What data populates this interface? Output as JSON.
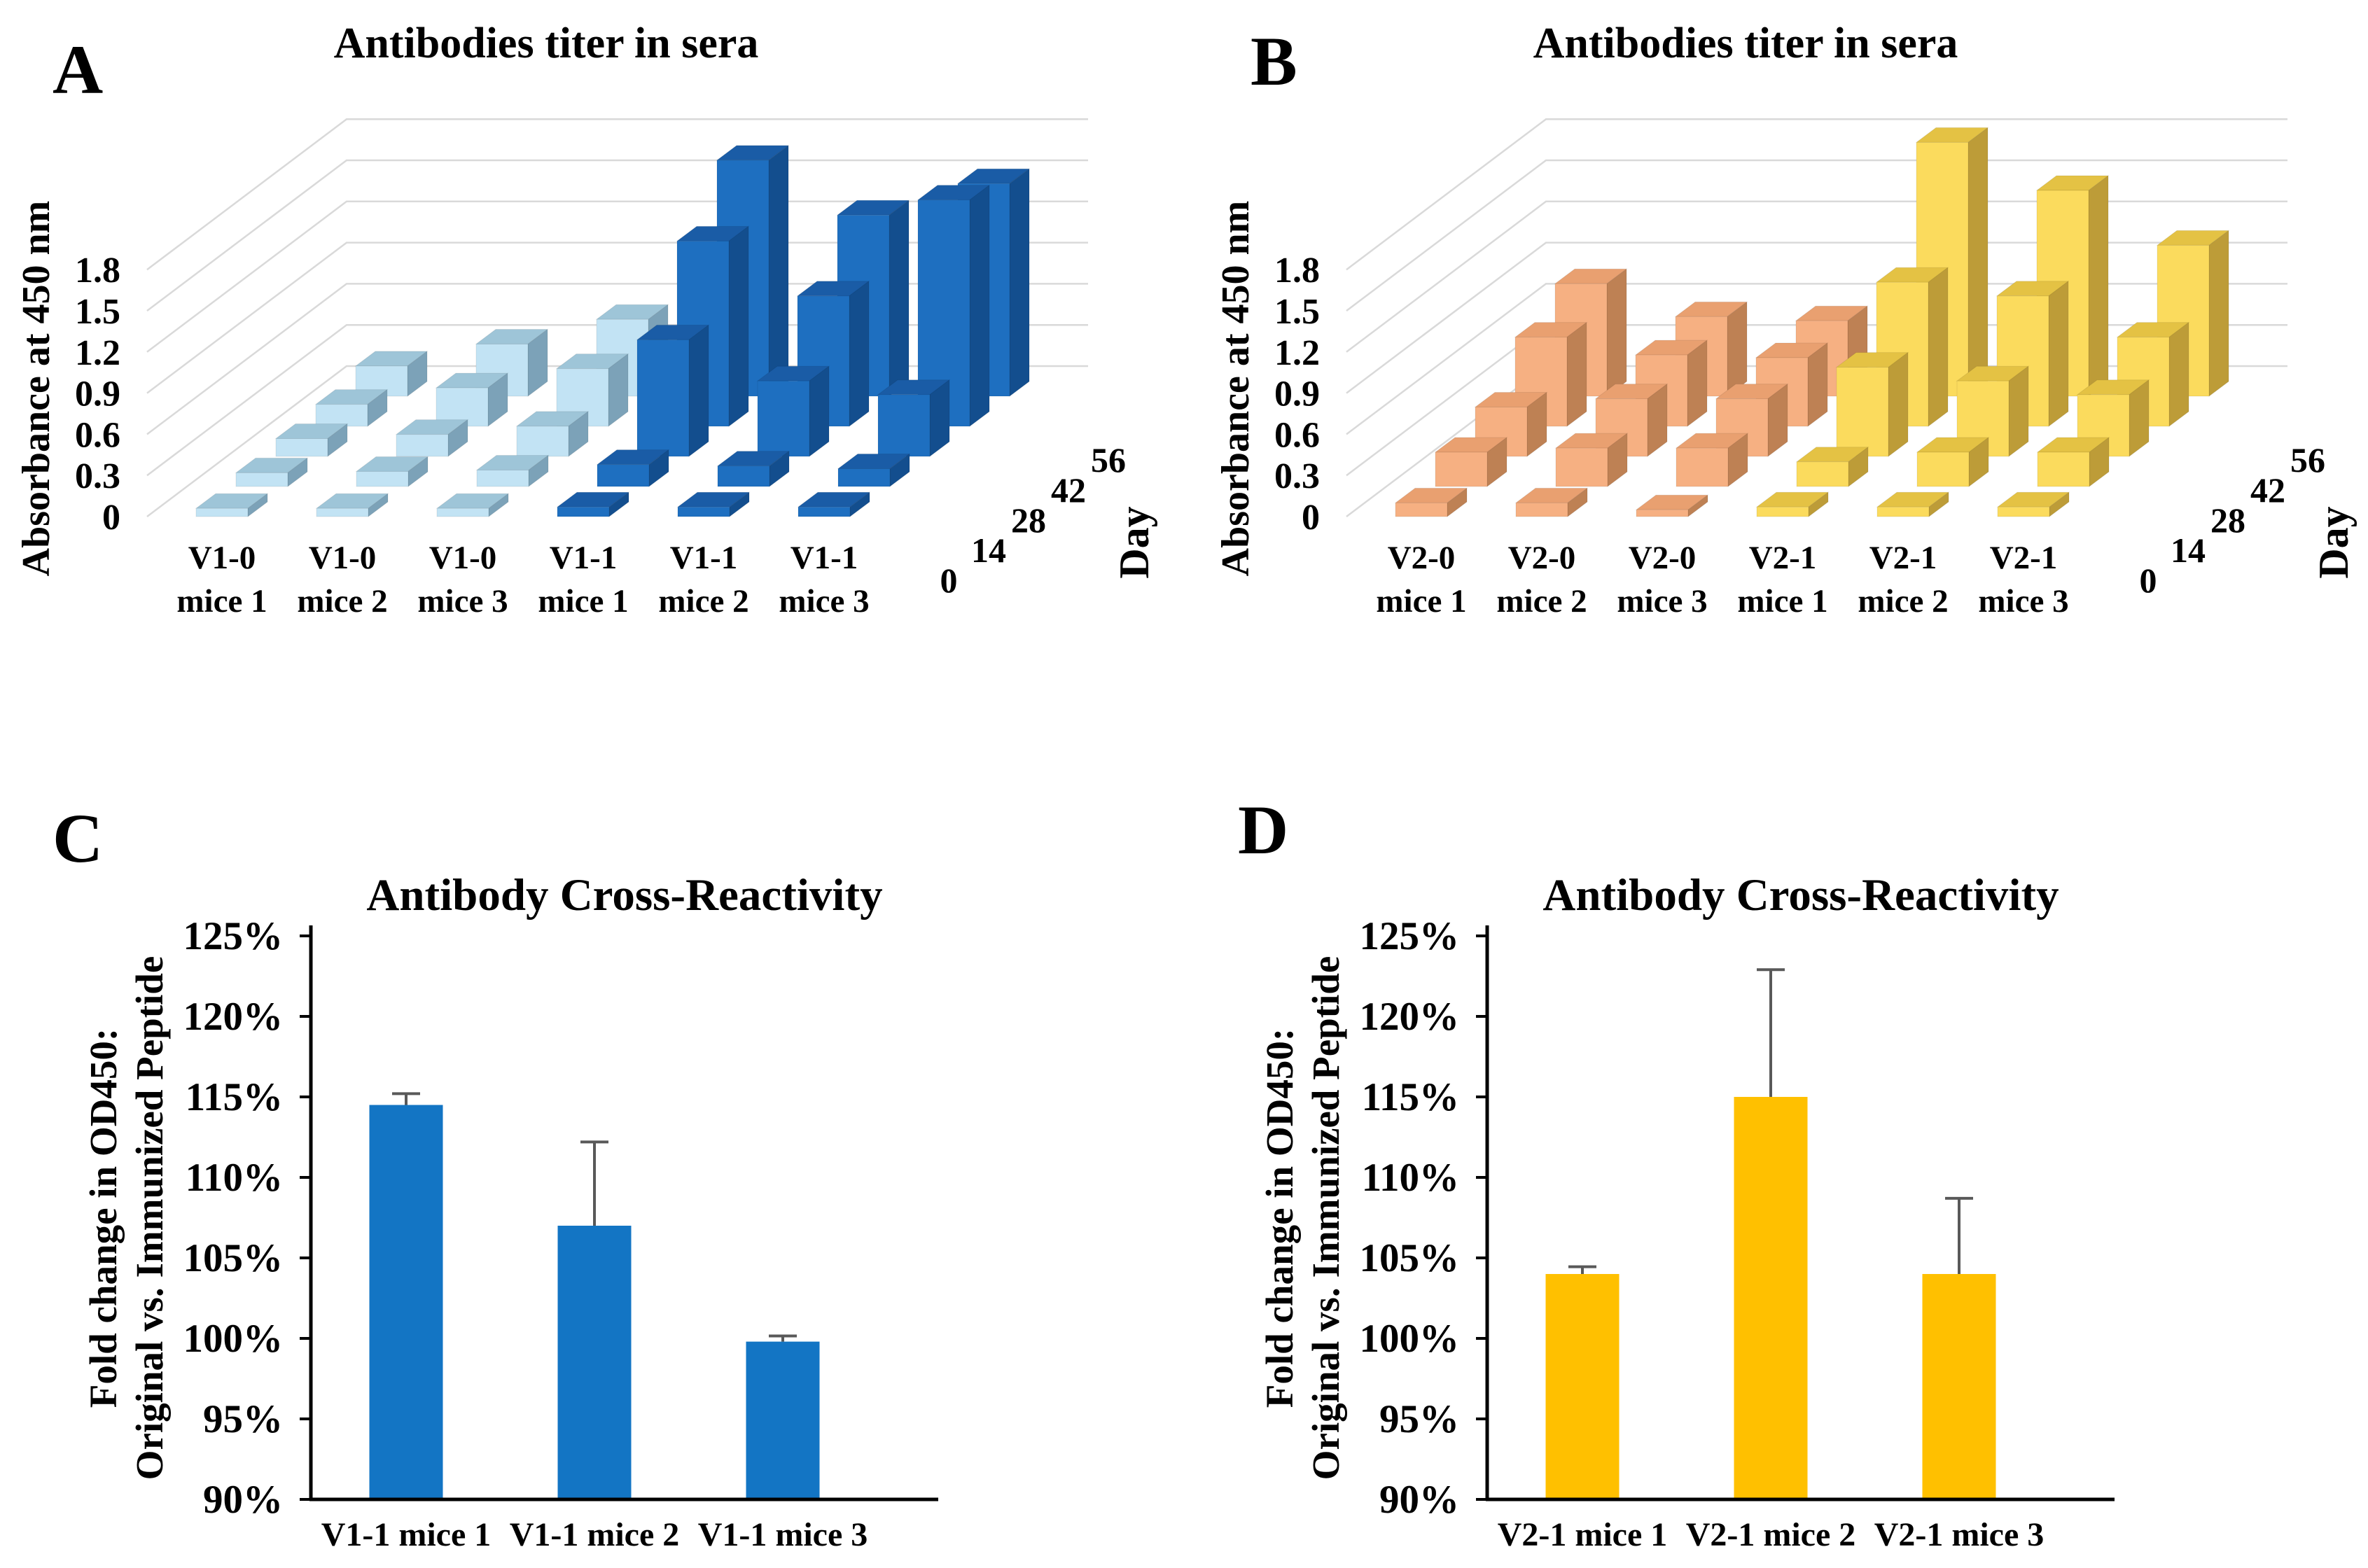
{
  "figure": {
    "background": "#FFFFFF",
    "panels": [
      {
        "letter": "A"
      },
      {
        "letter": "B"
      },
      {
        "letter": "C"
      },
      {
        "letter": "D"
      }
    ]
  },
  "chart_data": [
    {
      "panel": "A",
      "type": "bar3d",
      "title": "Antibodies titer in sera",
      "ylabel": "Absorbance at 450 nm",
      "ylim": [
        0,
        1.8
      ],
      "yticks": [
        "0",
        "0.3",
        "0.6",
        "0.9",
        "1.2",
        "1.5",
        "1.8"
      ],
      "depth_axis": {
        "label": "Day",
        "ticks": [
          "0",
          "14",
          "28",
          "42",
          "56"
        ]
      },
      "categories": [
        "V1-0 mice 1",
        "V1-0 mice 2",
        "V1-0 mice 3",
        "V1-1 mice 1",
        "V1-1 mice 2",
        "V1-1 mice 3"
      ],
      "series": [
        {
          "name": "V1-0 mice 1",
          "group": "V1-0",
          "values": [
            0.06,
            0.1,
            0.13,
            0.16,
            0.22
          ]
        },
        {
          "name": "V1-0 mice 2",
          "group": "V1-0",
          "values": [
            0.06,
            0.11,
            0.16,
            0.28,
            0.38
          ]
        },
        {
          "name": "V1-0 mice 3",
          "group": "V1-0",
          "values": [
            0.06,
            0.12,
            0.22,
            0.42,
            0.56
          ]
        },
        {
          "name": "V1-1 mice 1",
          "group": "V1-1",
          "values": [
            0.07,
            0.16,
            0.85,
            1.35,
            1.72
          ]
        },
        {
          "name": "V1-1 mice 2",
          "group": "V1-1",
          "values": [
            0.07,
            0.15,
            0.55,
            0.95,
            1.32
          ]
        },
        {
          "name": "V1-1 mice 3",
          "group": "V1-1",
          "values": [
            0.07,
            0.13,
            0.45,
            1.65,
            1.55
          ]
        }
      ],
      "group_colors": {
        "V1-0": {
          "front": "#C2E3F4",
          "top": "#9EC5D8",
          "side": "#7CA2B8"
        },
        "V1-1": {
          "front": "#1E6FC0",
          "top": "#1A5CA6",
          "side": "#134E8E"
        }
      },
      "grid_color": "#D9D9D9"
    },
    {
      "panel": "B",
      "type": "bar3d",
      "title": "Antibodies titer in sera",
      "ylabel": "Absorbance at 450 nm",
      "ylim": [
        0,
        1.8
      ],
      "yticks": [
        "0",
        "0.3",
        "0.6",
        "0.9",
        "1.2",
        "1.5",
        "1.8"
      ],
      "depth_axis": {
        "label": "Day",
        "ticks": [
          "0",
          "14",
          "28",
          "42",
          "56"
        ]
      },
      "categories": [
        "V2-0 mice 1",
        "V2-0 mice 2",
        "V2-0 mice 3",
        "V2-1 mice 1",
        "V2-1 mice 2",
        "V2-1 mice 3"
      ],
      "series": [
        {
          "name": "V2-0 mice 1",
          "group": "V2-0",
          "values": [
            0.1,
            0.25,
            0.36,
            0.65,
            0.82
          ]
        },
        {
          "name": "V2-0 mice 2",
          "group": "V2-0",
          "values": [
            0.1,
            0.28,
            0.42,
            0.52,
            0.58
          ]
        },
        {
          "name": "V2-0 mice 3",
          "group": "V2-0",
          "values": [
            0.05,
            0.28,
            0.42,
            0.5,
            0.55
          ]
        },
        {
          "name": "V2-1 mice 1",
          "group": "V2-1",
          "values": [
            0.07,
            0.18,
            0.65,
            1.05,
            1.85
          ]
        },
        {
          "name": "V2-1 mice 2",
          "group": "V2-1",
          "values": [
            0.07,
            0.25,
            0.55,
            0.95,
            1.5
          ]
        },
        {
          "name": "V2-1 mice 3",
          "group": "V2-1",
          "values": [
            0.07,
            0.25,
            0.45,
            0.65,
            1.1
          ]
        }
      ],
      "group_colors": {
        "V2-0": {
          "front": "#F6B082",
          "top": "#E9A070",
          "side": "#BE8154"
        },
        "V2-1": {
          "front": "#FBDB5D",
          "top": "#E4C244",
          "side": "#BD9C38"
        }
      },
      "grid_color": "#D9D9D9"
    },
    {
      "panel": "C",
      "type": "bar",
      "title": "Antibody Cross-Reactivity",
      "ylabel_lines": [
        "Fold change in OD450:",
        "Original vs. Immunized Peptide"
      ],
      "ylim": [
        90,
        125
      ],
      "yticks": [
        "90%",
        "95%",
        "100%",
        "105%",
        "110%",
        "115%",
        "120%",
        "125%"
      ],
      "categories": [
        "V1-1 mice 1",
        "V1-1 mice 2",
        "V1-1 mice 3"
      ],
      "values": [
        114.5,
        107.0,
        99.8
      ],
      "error_up": [
        0.7,
        5.2,
        0.35
      ],
      "bar_color": "#1375C4",
      "error_color": "#595959"
    },
    {
      "panel": "D",
      "type": "bar",
      "title": "Antibody Cross-Reactivity",
      "ylabel_lines": [
        "Fold change in OD450:",
        "Original vs. Immunized Peptide"
      ],
      "ylim": [
        90,
        125
      ],
      "yticks": [
        "90%",
        "95%",
        "100%",
        "105%",
        "110%",
        "115%",
        "120%",
        "125%"
      ],
      "categories": [
        "V2-1 mice 1",
        "V2-1 mice 2",
        "V2-1 mice 3"
      ],
      "values": [
        104.0,
        115.0,
        104.0
      ],
      "error_up": [
        0.45,
        7.9,
        4.7
      ],
      "bar_color": "#FFC000",
      "error_color": "#595959"
    }
  ]
}
